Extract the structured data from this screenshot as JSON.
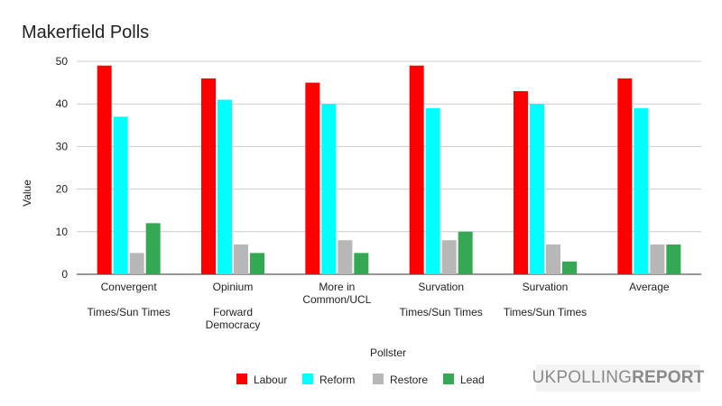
{
  "chart_data": {
    "type": "bar",
    "title": "Makerfield Polls",
    "xlabel": "Pollster",
    "ylabel": "Value",
    "ylim": [
      0,
      50
    ],
    "yticks": [
      0,
      10,
      20,
      30,
      40,
      50
    ],
    "grid": true,
    "legend_position": "bottom",
    "categories": [
      {
        "line1": "Convergent",
        "line2": "",
        "line3": "Times/Sun Times"
      },
      {
        "line1": "Opinium",
        "line2": "",
        "line3": "Forward",
        "line4": "Democracy"
      },
      {
        "line1": "More in",
        "line2": "Common/UCL"
      },
      {
        "line1": "Survation",
        "line2": "",
        "line3": "Times/Sun Times"
      },
      {
        "line1": "Survation",
        "line2": "",
        "line3": "Times/Sun Times"
      },
      {
        "line1": "Average"
      }
    ],
    "series": [
      {
        "name": "Labour",
        "color": "#ff0000",
        "values": [
          49,
          46,
          45,
          49,
          43,
          46
        ]
      },
      {
        "name": "Reform",
        "color": "#00ffff",
        "values": [
          37,
          41,
          40,
          39,
          40,
          39
        ]
      },
      {
        "name": "Restore",
        "color": "#b7b7b7",
        "values": [
          5,
          7,
          8,
          8,
          7,
          7
        ]
      },
      {
        "name": "Lead",
        "color": "#34a853",
        "values": [
          12,
          5,
          5,
          10,
          3,
          7
        ]
      }
    ]
  },
  "watermark": {
    "part1": "UKPOLLING",
    "part2": "REPORT"
  }
}
